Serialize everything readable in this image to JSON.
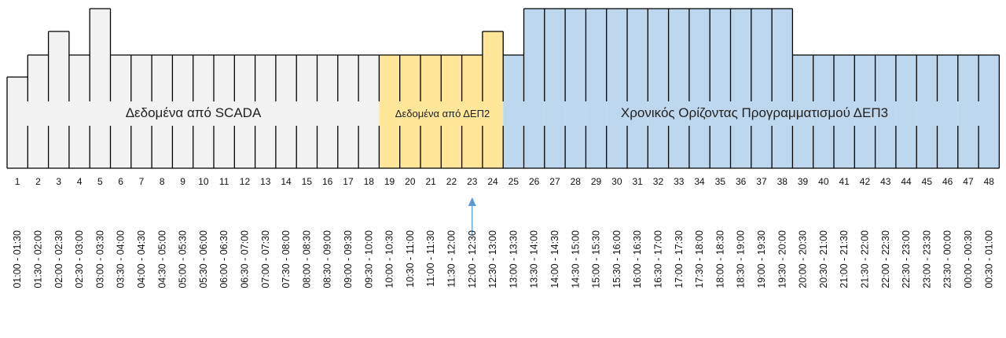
{
  "segments": [
    {
      "label": "Δεδομένα από SCADA",
      "from": 1,
      "to": 18,
      "fill": "#f2f2f2"
    },
    {
      "label": "Δεδομένα από ΔΕΠ2",
      "from": 19,
      "to": 24,
      "fill": "#ffe699"
    },
    {
      "label": "Χρονικός Ορίζοντας Προγραμματισμού ΔΕΠ3",
      "from": 25,
      "to": 48,
      "fill": "#bdd7ee"
    }
  ],
  "slots": [
    {
      "n": "1",
      "time": "01:00 - 01:30",
      "level": 1
    },
    {
      "n": "2",
      "time": "01:30 - 02:00",
      "level": 2
    },
    {
      "n": "3",
      "time": "02:00 - 02:30",
      "level": 3
    },
    {
      "n": "4",
      "time": "02:30 - 03:00",
      "level": 2
    },
    {
      "n": "5",
      "time": "03:00 - 03:30",
      "level": 4
    },
    {
      "n": "6",
      "time": "03:30 - 04:00",
      "level": 2
    },
    {
      "n": "7",
      "time": "04:00 - 04:30",
      "level": 2
    },
    {
      "n": "8",
      "time": "04:30 - 05:00",
      "level": 2
    },
    {
      "n": "9",
      "time": "05:00 - 05:30",
      "level": 2
    },
    {
      "n": "10",
      "time": "05:30 - 06:00",
      "level": 2
    },
    {
      "n": "11",
      "time": "06:00 - 06:30",
      "level": 2
    },
    {
      "n": "12",
      "time": "06:30 - 07:00",
      "level": 2
    },
    {
      "n": "13",
      "time": "07:00 - 07:30",
      "level": 2
    },
    {
      "n": "14",
      "time": "07:30 - 08:00",
      "level": 2
    },
    {
      "n": "15",
      "time": "08:00 - 08:30",
      "level": 2
    },
    {
      "n": "16",
      "time": "08:30 - 09:00",
      "level": 2
    },
    {
      "n": "17",
      "time": "09:00 - 09:30",
      "level": 2
    },
    {
      "n": "18",
      "time": "09:30 - 10:00",
      "level": 2
    },
    {
      "n": "19",
      "time": "10:00 - 10:30",
      "level": 2
    },
    {
      "n": "20",
      "time": "10:30 - 11:00",
      "level": 2
    },
    {
      "n": "21",
      "time": "11:00 - 11:30",
      "level": 2
    },
    {
      "n": "22",
      "time": "11:30 - 12:00",
      "level": 2
    },
    {
      "n": "23",
      "time": "12:00 - 12:30",
      "level": 2
    },
    {
      "n": "24",
      "time": "12:30 - 13:00",
      "level": 3
    },
    {
      "n": "25",
      "time": "13:00 - 13:30",
      "level": 2
    },
    {
      "n": "26",
      "time": "13:30 - 14:00",
      "level": 4
    },
    {
      "n": "27",
      "time": "14:00 - 14:30",
      "level": 4
    },
    {
      "n": "28",
      "time": "14:30 - 15:00",
      "level": 4
    },
    {
      "n": "29",
      "time": "15:00 - 15:30",
      "level": 4
    },
    {
      "n": "30",
      "time": "15:30 - 16:00",
      "level": 4
    },
    {
      "n": "31",
      "time": "16:00 - 16:30",
      "level": 4
    },
    {
      "n": "32",
      "time": "16:30 - 17:00",
      "level": 4
    },
    {
      "n": "33",
      "time": "17:00 - 17:30",
      "level": 4
    },
    {
      "n": "34",
      "time": "17:30 - 18:00",
      "level": 4
    },
    {
      "n": "35",
      "time": "18:00 - 18:30",
      "level": 4
    },
    {
      "n": "36",
      "time": "18:30 - 19:00",
      "level": 4
    },
    {
      "n": "37",
      "time": "19:00 - 19:30",
      "level": 4
    },
    {
      "n": "38",
      "time": "19:30 - 20:00",
      "level": 4
    },
    {
      "n": "39",
      "time": "20:00 - 20:30",
      "level": 2
    },
    {
      "n": "40",
      "time": "20:30 - 21:00",
      "level": 2
    },
    {
      "n": "41",
      "time": "21:00 - 21:30",
      "level": 2
    },
    {
      "n": "42",
      "time": "21:30 - 22:00",
      "level": 2
    },
    {
      "n": "43",
      "time": "22:00 - 22:30",
      "level": 2
    },
    {
      "n": "44",
      "time": "22:30 - 23:00",
      "level": 2
    },
    {
      "n": "45",
      "time": "23:00 - 23:30",
      "level": 2
    },
    {
      "n": "46",
      "time": "23:30 - 00:00",
      "level": 2
    },
    {
      "n": "47",
      "time": "00:00 - 00:30",
      "level": 2
    },
    {
      "n": "48",
      "time": "00:30 - 01:00",
      "level": 2
    }
  ],
  "marker": {
    "slot": 23,
    "color": "#5b9bd5"
  },
  "colors": {
    "outline": "#000000"
  }
}
